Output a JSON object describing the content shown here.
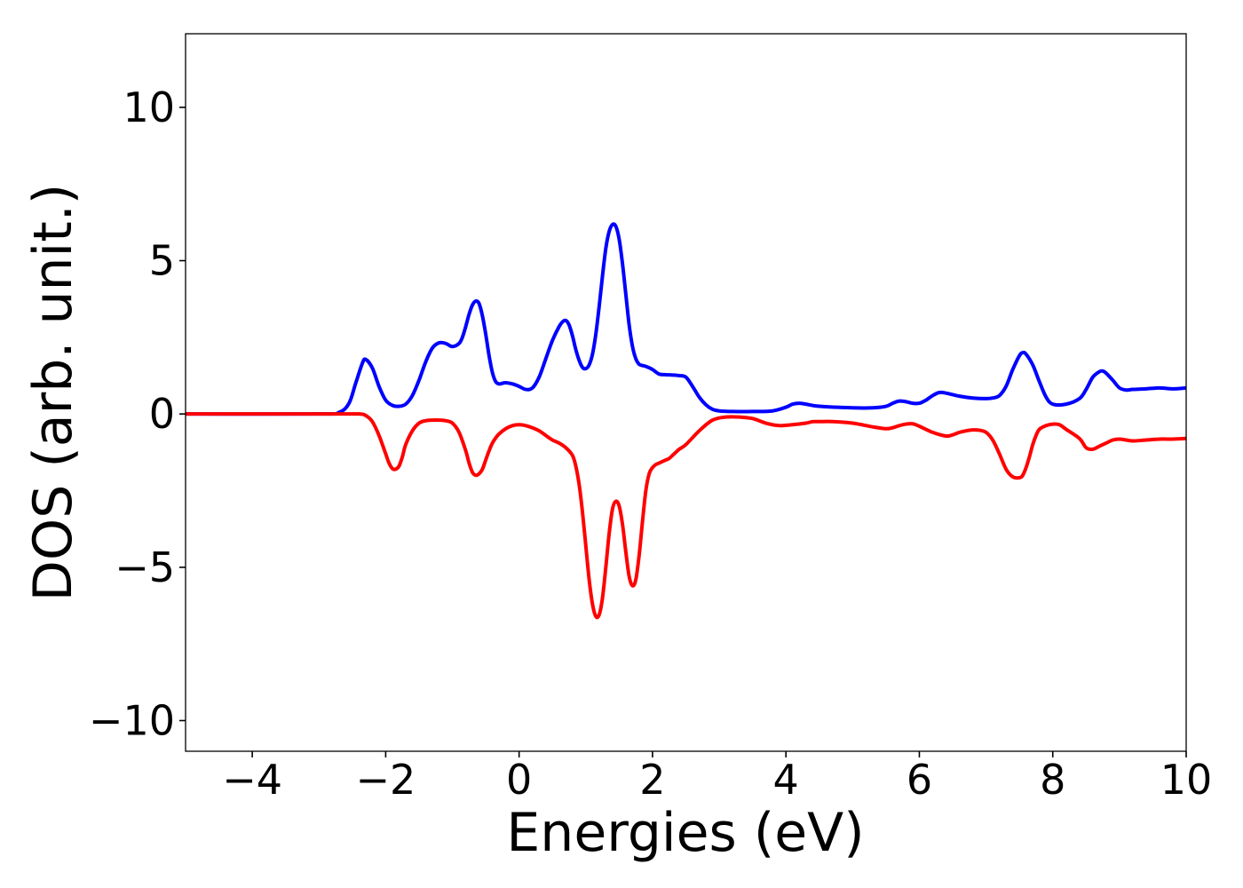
{
  "chart_data": {
    "type": "line",
    "title": "",
    "xlabel": "Energies (eV)",
    "ylabel": "DOS (arb. unit.)",
    "xlim": [
      -5,
      10
    ],
    "ylim": [
      -11,
      12.4
    ],
    "xticks": [
      -4,
      -2,
      0,
      2,
      4,
      6,
      8,
      10
    ],
    "xtick_labels": [
      "−4",
      "−2",
      "0",
      "2",
      "4",
      "6",
      "8",
      "10"
    ],
    "yticks": [
      -10,
      -5,
      0,
      5,
      10
    ],
    "ytick_labels": [
      "−10",
      "−5",
      "0",
      "5",
      "10"
    ],
    "grid": false,
    "legend": false,
    "series": [
      {
        "color": "#0000ff",
        "x": [
          -5.0,
          -3.0,
          -2.7,
          -2.55,
          -2.45,
          -2.35,
          -2.3,
          -2.2,
          -2.1,
          -2.0,
          -1.9,
          -1.8,
          -1.7,
          -1.6,
          -1.5,
          -1.4,
          -1.3,
          -1.2,
          -1.1,
          -1.0,
          -0.9,
          -0.85,
          -0.8,
          -0.75,
          -0.7,
          -0.65,
          -0.6,
          -0.55,
          -0.5,
          -0.45,
          -0.4,
          -0.35,
          -0.3,
          -0.25,
          -0.2,
          -0.1,
          0.0,
          0.1,
          0.2,
          0.3,
          0.4,
          0.5,
          0.6,
          0.65,
          0.7,
          0.75,
          0.8,
          0.85,
          0.9,
          0.95,
          1.0,
          1.05,
          1.1,
          1.15,
          1.2,
          1.25,
          1.3,
          1.35,
          1.4,
          1.45,
          1.5,
          1.55,
          1.6,
          1.65,
          1.7,
          1.75,
          1.8,
          1.85,
          1.9,
          2.0,
          2.1,
          2.2,
          2.3,
          2.4,
          2.5,
          2.6,
          2.7,
          2.8,
          2.9,
          3.0,
          3.2,
          3.5,
          3.8,
          4.0,
          4.1,
          4.2,
          4.3,
          4.5,
          5.0,
          5.3,
          5.5,
          5.6,
          5.7,
          5.8,
          5.9,
          6.0,
          6.1,
          6.2,
          6.3,
          6.4,
          6.6,
          6.8,
          7.0,
          7.1,
          7.2,
          7.3,
          7.4,
          7.5,
          7.55,
          7.6,
          7.7,
          7.8,
          7.9,
          8.0,
          8.2,
          8.4,
          8.5,
          8.6,
          8.7,
          8.75,
          8.8,
          8.9,
          9.0,
          9.1,
          9.2,
          9.4,
          9.6,
          9.8,
          10.0
        ],
        "y": [
          0.0,
          0.0,
          0.05,
          0.35,
          1.0,
          1.65,
          1.78,
          1.5,
          0.9,
          0.45,
          0.28,
          0.25,
          0.32,
          0.6,
          1.1,
          1.7,
          2.15,
          2.32,
          2.3,
          2.2,
          2.3,
          2.5,
          2.85,
          3.25,
          3.55,
          3.68,
          3.6,
          3.2,
          2.6,
          1.9,
          1.35,
          1.05,
          0.98,
          1.0,
          1.02,
          0.98,
          0.9,
          0.8,
          0.85,
          1.2,
          1.8,
          2.4,
          2.85,
          3.0,
          3.05,
          2.9,
          2.55,
          2.1,
          1.75,
          1.52,
          1.48,
          1.6,
          1.95,
          2.6,
          3.5,
          4.5,
          5.4,
          5.95,
          6.18,
          6.12,
          5.7,
          4.9,
          3.9,
          2.9,
          2.2,
          1.8,
          1.62,
          1.58,
          1.55,
          1.45,
          1.3,
          1.28,
          1.27,
          1.25,
          1.2,
          0.9,
          0.55,
          0.3,
          0.15,
          0.1,
          0.08,
          0.08,
          0.1,
          0.22,
          0.32,
          0.35,
          0.32,
          0.25,
          0.2,
          0.2,
          0.25,
          0.35,
          0.42,
          0.4,
          0.35,
          0.35,
          0.45,
          0.6,
          0.7,
          0.68,
          0.58,
          0.52,
          0.5,
          0.52,
          0.6,
          0.9,
          1.45,
          1.9,
          2.0,
          1.95,
          1.6,
          1.05,
          0.55,
          0.32,
          0.32,
          0.5,
          0.8,
          1.2,
          1.38,
          1.4,
          1.33,
          1.1,
          0.85,
          0.78,
          0.8,
          0.82,
          0.85,
          0.82,
          0.85
        ]
      },
      {
        "color": "#ff0000",
        "x": [
          -5.0,
          -2.7,
          -2.4,
          -2.3,
          -2.2,
          -2.1,
          -2.0,
          -1.95,
          -1.9,
          -1.85,
          -1.8,
          -1.75,
          -1.7,
          -1.6,
          -1.5,
          -1.4,
          -1.3,
          -1.2,
          -1.1,
          -1.0,
          -0.9,
          -0.8,
          -0.75,
          -0.7,
          -0.65,
          -0.6,
          -0.55,
          -0.5,
          -0.45,
          -0.4,
          -0.35,
          -0.3,
          -0.2,
          -0.1,
          0.0,
          0.1,
          0.2,
          0.3,
          0.4,
          0.5,
          0.6,
          0.7,
          0.8,
          0.85,
          0.9,
          0.95,
          1.0,
          1.05,
          1.1,
          1.15,
          1.2,
          1.25,
          1.3,
          1.35,
          1.4,
          1.45,
          1.5,
          1.55,
          1.6,
          1.65,
          1.7,
          1.75,
          1.8,
          1.85,
          1.9,
          1.95,
          2.0,
          2.05,
          2.1,
          2.15,
          2.2,
          2.25,
          2.3,
          2.35,
          2.4,
          2.5,
          2.7,
          2.9,
          3.1,
          3.3,
          3.5,
          3.7,
          3.9,
          4.1,
          4.3,
          4.4,
          4.5,
          4.7,
          5.0,
          5.3,
          5.5,
          5.6,
          5.7,
          5.8,
          5.9,
          6.0,
          6.2,
          6.4,
          6.5,
          6.6,
          6.7,
          6.8,
          6.9,
          7.0,
          7.1,
          7.2,
          7.3,
          7.4,
          7.5,
          7.55,
          7.6,
          7.65,
          7.7,
          7.75,
          7.8,
          7.9,
          8.0,
          8.1,
          8.2,
          8.4,
          8.5,
          8.6,
          8.7,
          8.8,
          8.9,
          9.0,
          9.1,
          9.2,
          9.4,
          9.6,
          9.8,
          10.0
        ],
        "y": [
          0.0,
          0.0,
          0.0,
          -0.05,
          -0.25,
          -0.7,
          -1.3,
          -1.6,
          -1.78,
          -1.8,
          -1.7,
          -1.4,
          -1.0,
          -0.55,
          -0.3,
          -0.22,
          -0.2,
          -0.2,
          -0.22,
          -0.3,
          -0.6,
          -1.2,
          -1.6,
          -1.9,
          -2.0,
          -1.95,
          -1.8,
          -1.5,
          -1.2,
          -0.95,
          -0.78,
          -0.65,
          -0.48,
          -0.38,
          -0.35,
          -0.38,
          -0.45,
          -0.55,
          -0.7,
          -0.85,
          -0.95,
          -1.1,
          -1.35,
          -1.7,
          -2.3,
          -3.2,
          -4.3,
          -5.4,
          -6.2,
          -6.6,
          -6.55,
          -6.0,
          -5.0,
          -3.9,
          -3.1,
          -2.85,
          -3.0,
          -3.6,
          -4.5,
          -5.3,
          -5.6,
          -5.4,
          -4.6,
          -3.5,
          -2.5,
          -1.95,
          -1.75,
          -1.65,
          -1.6,
          -1.55,
          -1.5,
          -1.45,
          -1.35,
          -1.25,
          -1.15,
          -1.0,
          -0.55,
          -0.2,
          -0.1,
          -0.1,
          -0.15,
          -0.3,
          -0.38,
          -0.35,
          -0.3,
          -0.25,
          -0.25,
          -0.25,
          -0.3,
          -0.42,
          -0.48,
          -0.45,
          -0.38,
          -0.33,
          -0.32,
          -0.4,
          -0.6,
          -0.72,
          -0.68,
          -0.6,
          -0.55,
          -0.52,
          -0.53,
          -0.6,
          -0.85,
          -1.3,
          -1.8,
          -2.05,
          -2.08,
          -2.0,
          -1.75,
          -1.4,
          -1.0,
          -0.7,
          -0.5,
          -0.38,
          -0.33,
          -0.35,
          -0.5,
          -0.8,
          -1.1,
          -1.15,
          -1.05,
          -0.95,
          -0.85,
          -0.82,
          -0.85,
          -0.88,
          -0.85,
          -0.82,
          -0.82,
          -0.8
        ]
      }
    ]
  }
}
